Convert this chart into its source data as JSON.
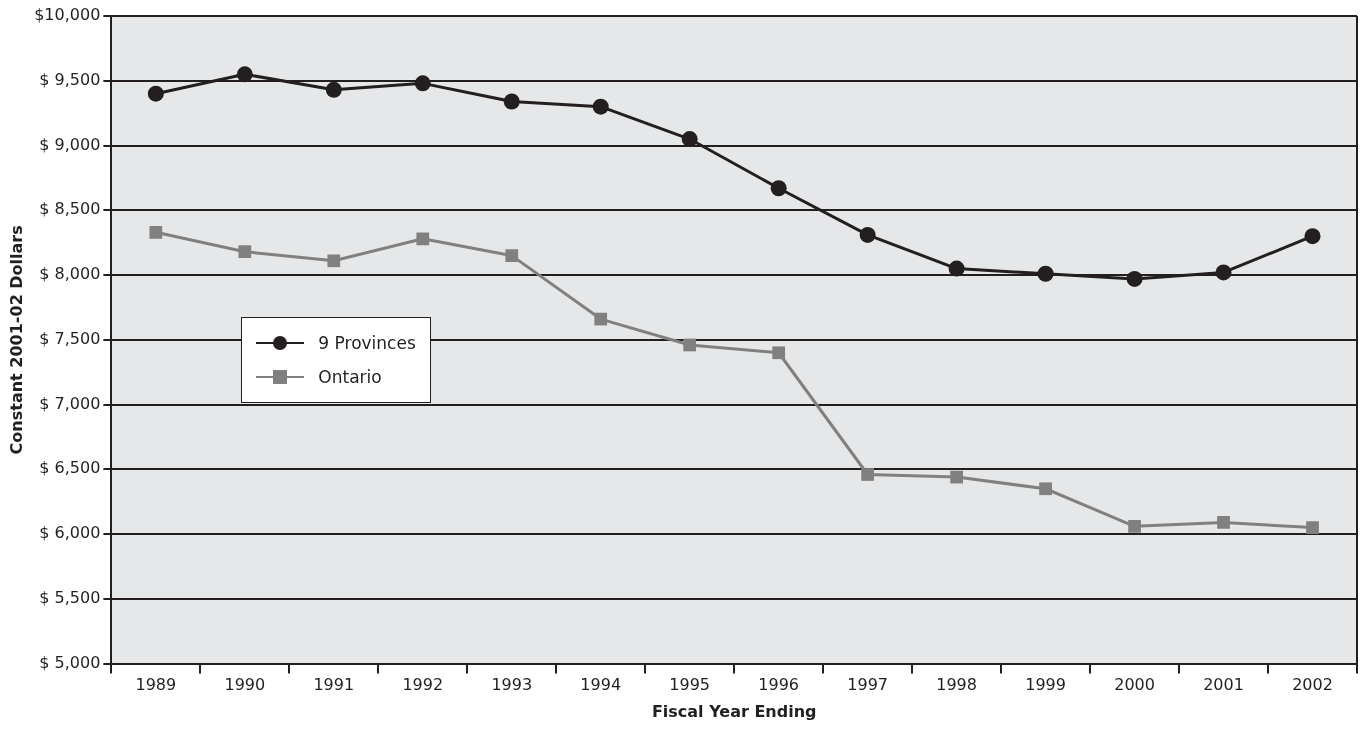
{
  "chart_data": {
    "type": "line",
    "xlabel": "Fiscal Year Ending",
    "ylabel": "Constant 2001-02 Dollars",
    "categories": [
      "1989",
      "1990",
      "1991",
      "1992",
      "1993",
      "1994",
      "1995",
      "1996",
      "1997",
      "1998",
      "1999",
      "2000",
      "2001",
      "2002"
    ],
    "series": [
      {
        "name": "9 Provinces",
        "color": "#231f20",
        "marker": "circle",
        "values": [
          9400,
          9550,
          9430,
          9480,
          9340,
          9300,
          9050,
          8670,
          8310,
          8050,
          8010,
          7970,
          8020,
          8300
        ]
      },
      {
        "name": "Ontario",
        "color": "#808080",
        "marker": "square",
        "values": [
          8330,
          8180,
          8110,
          8280,
          8150,
          7660,
          7460,
          7400,
          6460,
          6440,
          6350,
          6060,
          6090,
          6050
        ]
      }
    ],
    "ylim": [
      5000,
      10000
    ],
    "yticks": [
      {
        "value": 5000,
        "label": "$ 5,000"
      },
      {
        "value": 5500,
        "label": "$ 5,500"
      },
      {
        "value": 6000,
        "label": "$ 6,000"
      },
      {
        "value": 6500,
        "label": "$ 6,500"
      },
      {
        "value": 7000,
        "label": "$ 7,000"
      },
      {
        "value": 7500,
        "label": "$ 7,500"
      },
      {
        "value": 8000,
        "label": "$ 8,000"
      },
      {
        "value": 8500,
        "label": "$ 8,500"
      },
      {
        "value": 9000,
        "label": "$ 9,000"
      },
      {
        "value": 9500,
        "label": "$ 9,500"
      },
      {
        "value": 10000,
        "label": "$10,000"
      }
    ],
    "grid": "y",
    "legend": "left",
    "line_style": "solid"
  }
}
